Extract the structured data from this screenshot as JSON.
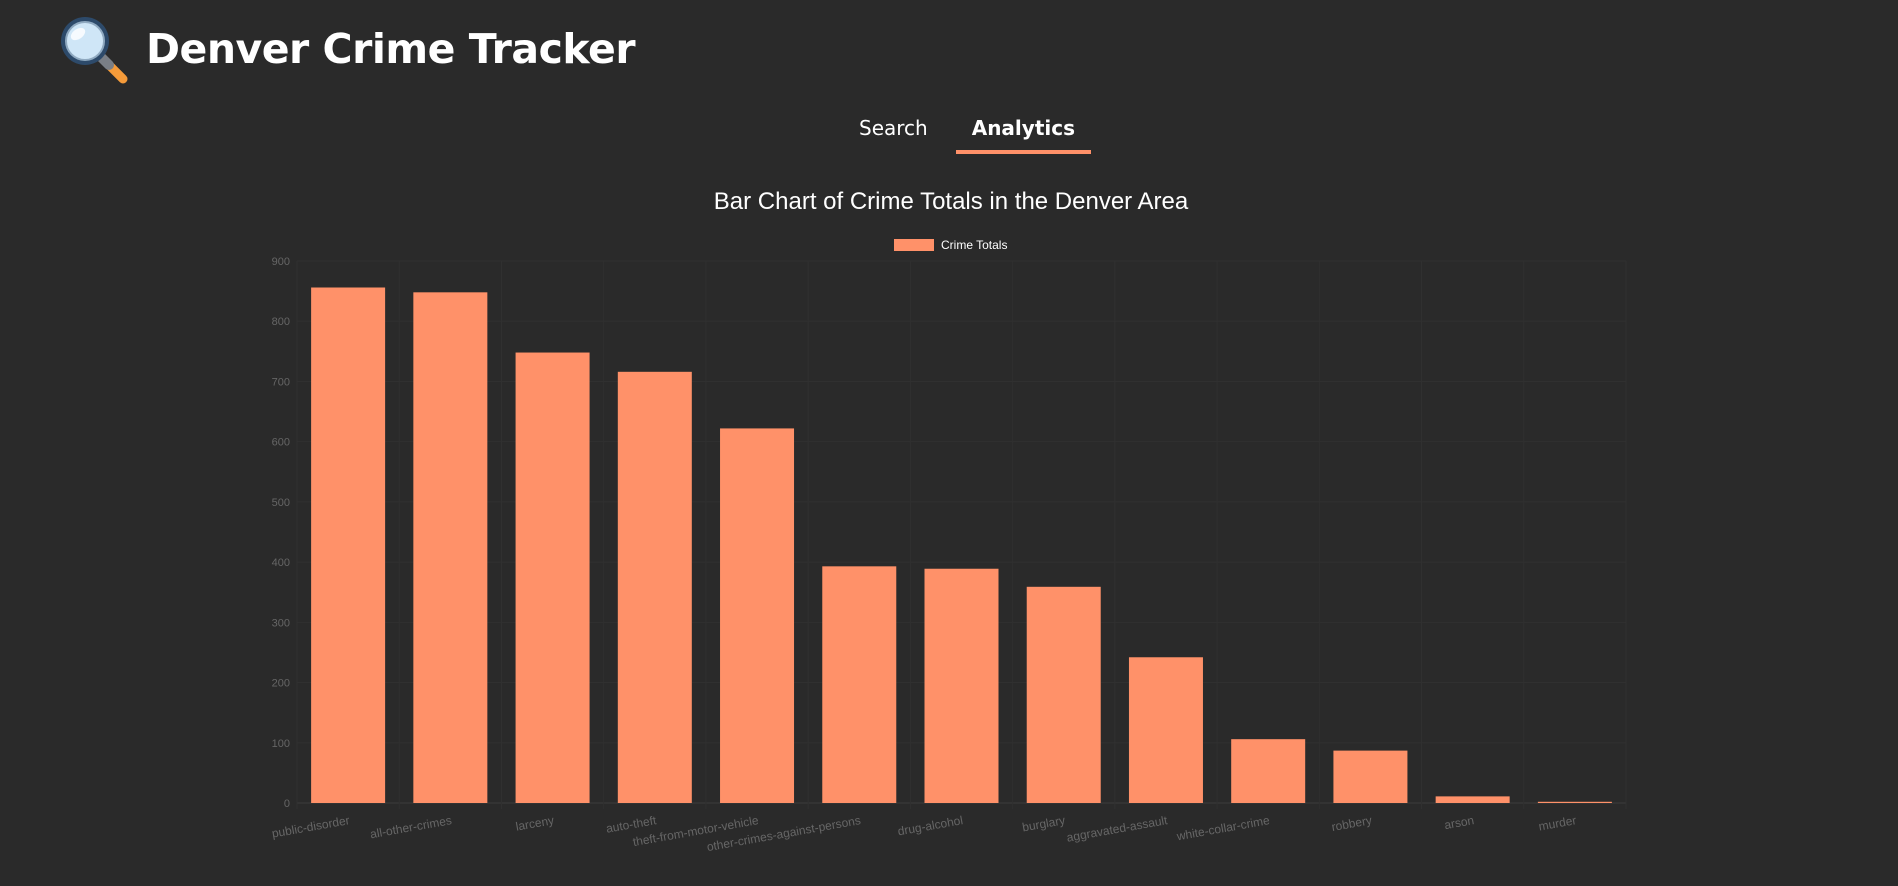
{
  "header": {
    "title": "Denver Crime Tracker",
    "logo_icon": "magnifying-glass-icon"
  },
  "tabs": [
    {
      "label": "Search",
      "active": false
    },
    {
      "label": "Analytics",
      "active": true
    }
  ],
  "colors": {
    "background": "#2a2a2a",
    "accent": "#ff9169",
    "bar": "#ff9169"
  },
  "chart_data": {
    "type": "bar",
    "title": "Bar Chart of Crime Totals in the Denver Area",
    "legend_position": "top-center",
    "grid": true,
    "ylim": [
      0,
      900
    ],
    "yticks": [
      "0",
      "100",
      "200",
      "300",
      "400",
      "500",
      "600",
      "700",
      "800",
      "900"
    ],
    "categories": [
      "public-disorder",
      "all-other-crimes",
      "larceny",
      "auto-theft",
      "theft-from-motor-vehicle",
      "other-crimes-against-persons",
      "drug-alcohol",
      "burglary",
      "aggravated-assault",
      "white-collar-crime",
      "robbery",
      "arson",
      "murder"
    ],
    "series": [
      {
        "name": "Crime Totals",
        "values": [
          856,
          848,
          748,
          716,
          622,
          393,
          389,
          359,
          242,
          106,
          87,
          11,
          2
        ]
      }
    ]
  }
}
